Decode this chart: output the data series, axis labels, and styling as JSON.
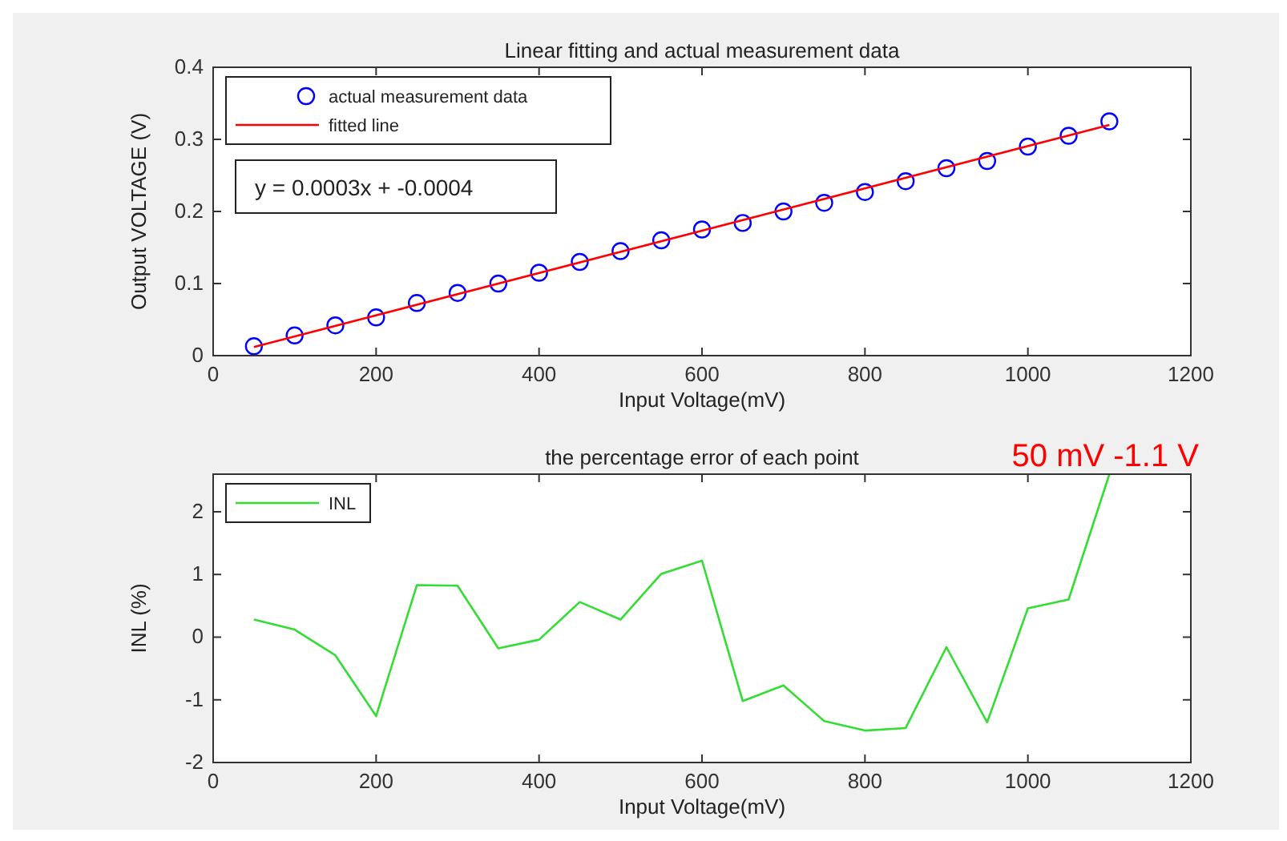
{
  "chart_data": [
    {
      "type": "scatter",
      "title": "Linear fitting and actual measurement data",
      "xlabel": "Input Voltage(mV)",
      "ylabel": "Output VOLTAGE (V)",
      "x": [
        50,
        100,
        150,
        200,
        250,
        300,
        350,
        400,
        450,
        500,
        550,
        600,
        650,
        700,
        750,
        800,
        850,
        900,
        950,
        1000,
        1050,
        1100
      ],
      "series": [
        {
          "name": "actual measurement data",
          "color": "#0000ff",
          "marker": "circle",
          "values": [
            0.013,
            0.028,
            0.042,
            0.053,
            0.073,
            0.087,
            0.1,
            0.115,
            0.13,
            0.145,
            0.16,
            0.175,
            0.184,
            0.2,
            0.212,
            0.227,
            0.242,
            0.26,
            0.27,
            0.29,
            0.305,
            0.325
          ]
        },
        {
          "name": "fitted line",
          "type": "line",
          "color": "#ff0000",
          "x": [
            50,
            1100
          ],
          "values": [
            0.012,
            0.32
          ]
        }
      ],
      "xlim": [
        0,
        1200
      ],
      "ylim": [
        0,
        0.4
      ],
      "xticks": [
        0,
        200,
        400,
        600,
        800,
        1000,
        1200
      ],
      "yticks": [
        0,
        0.1,
        0.2,
        0.3,
        0.4
      ],
      "legend": "top left",
      "grid": false,
      "annotations": [
        "y = 0.0003x + -0.0004"
      ]
    },
    {
      "type": "line",
      "title": "the percentage error of each point",
      "xlabel": "Input Voltage(mV)",
      "ylabel": "INL (%)",
      "x": [
        50,
        100,
        150,
        200,
        250,
        300,
        350,
        400,
        450,
        500,
        550,
        600,
        650,
        700,
        750,
        800,
        850,
        900,
        950,
        1000,
        1050,
        1100
      ],
      "series": [
        {
          "name": "INL",
          "color": "#33dd33",
          "values": [
            0.28,
            0.12,
            -0.29,
            -1.26,
            0.83,
            0.82,
            -0.18,
            -0.04,
            0.56,
            0.28,
            1.01,
            1.22,
            -1.02,
            -0.77,
            -1.34,
            -1.49,
            -1.45,
            -0.16,
            -1.36,
            0.46,
            0.6,
            2.6
          ]
        }
      ],
      "xlim": [
        0,
        1200
      ],
      "ylim": [
        -2,
        2.6
      ],
      "xticks": [
        0,
        200,
        400,
        600,
        800,
        1000,
        1200
      ],
      "yticks": [
        -2,
        -1,
        0,
        1,
        2
      ],
      "legend": "top left",
      "grid": false,
      "marker": "none",
      "annotations": [
        "50 mV -1.1 V"
      ]
    }
  ]
}
